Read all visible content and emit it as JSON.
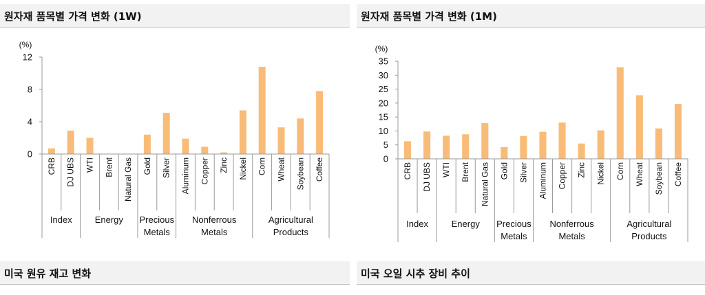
{
  "sections": {
    "top_left": "원자재 품목별 가격 변화 (1W)",
    "top_right": "원자재 품목별 가격 변화 (1M)",
    "bottom_left": "미국 원유 재고 변화",
    "bottom_right": "미국 오일 시추 장비 추이"
  },
  "colors": {
    "bar": "#f8bc78",
    "axis": "#999999",
    "header_bg": "#f2f2f2"
  },
  "chart_data": [
    {
      "type": "bar",
      "title": "원자재 품목별 가격 변화 (1W)",
      "ylabel": "(%)",
      "ylim": [
        0,
        12
      ],
      "yticks": [
        0,
        4,
        8,
        12
      ],
      "grid": false,
      "categories": [
        "CRB",
        "DJ UBS",
        "WTI",
        "Brent",
        "Natural Gas",
        "Gold",
        "Silver",
        "Aluminum",
        "Copper",
        "Zinc",
        "Nickel",
        "Corn",
        "Wheat",
        "Soybean",
        "Coffee"
      ],
      "values": [
        0.7,
        2.9,
        2.0,
        0,
        0,
        2.4,
        5.1,
        1.9,
        0.9,
        0.2,
        5.4,
        10.8,
        3.3,
        4.4,
        7.8
      ],
      "groups": [
        {
          "label": [
            "Index"
          ],
          "start": 0,
          "end": 1
        },
        {
          "label": [
            "Energy"
          ],
          "start": 2,
          "end": 4
        },
        {
          "label": [
            "Precious",
            "Metals"
          ],
          "start": 5,
          "end": 6
        },
        {
          "label": [
            "Nonferrous",
            "Metals"
          ],
          "start": 7,
          "end": 10
        },
        {
          "label": [
            "Agricultural",
            "Products"
          ],
          "start": 11,
          "end": 14
        }
      ]
    },
    {
      "type": "bar",
      "title": "원자재 품목별 가격 변화 (1M)",
      "ylabel": "(%)",
      "ylim": [
        0,
        35
      ],
      "yticks": [
        0,
        5,
        10,
        15,
        20,
        25,
        30,
        35
      ],
      "grid": false,
      "categories": [
        "CRB",
        "DJ UBS",
        "WTI",
        "Brent",
        "Natural Gas",
        "Gold",
        "Silver",
        "Aluminum",
        "Copper",
        "Zinc",
        "Nickel",
        "Corn",
        "Wheat",
        "Soybean",
        "Coffee"
      ],
      "values": [
        6.3,
        9.8,
        8.3,
        8.8,
        12.8,
        4.2,
        8.2,
        9.7,
        13.0,
        5.5,
        10.2,
        32.8,
        22.8,
        10.9,
        19.7
      ],
      "groups": [
        {
          "label": [
            "Index"
          ],
          "start": 0,
          "end": 1
        },
        {
          "label": [
            "Energy"
          ],
          "start": 2,
          "end": 4
        },
        {
          "label": [
            "Precious",
            "Metals"
          ],
          "start": 5,
          "end": 6
        },
        {
          "label": [
            "Nonferrous",
            "Metals"
          ],
          "start": 7,
          "end": 10
        },
        {
          "label": [
            "Agricultural",
            "Products"
          ],
          "start": 11,
          "end": 14
        }
      ]
    }
  ]
}
